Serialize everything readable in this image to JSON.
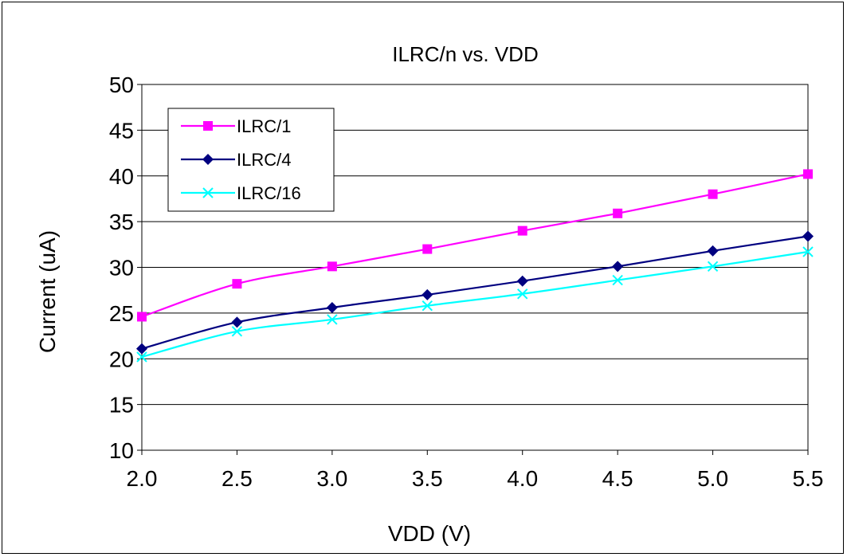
{
  "chart_data": {
    "type": "line",
    "title": "ILRC/n vs. VDD",
    "xlabel": "VDD (V)",
    "ylabel": "Current (uA)",
    "x": [
      2.0,
      2.5,
      3.0,
      3.5,
      4.0,
      4.5,
      5.0,
      5.5
    ],
    "x_tick_labels": [
      "2.0",
      "2.5",
      "3.0",
      "3.5",
      "4.0",
      "4.5",
      "5.0",
      "5.5"
    ],
    "y_tick_labels": [
      "10",
      "15",
      "20",
      "25",
      "30",
      "35",
      "40",
      "45",
      "50"
    ],
    "xlim": [
      2.0,
      5.5
    ],
    "ylim": [
      10,
      50
    ],
    "grid": "horizontal",
    "legend_position": "top-left",
    "series": [
      {
        "name": "ILRC/1",
        "color": "#FF00FF",
        "marker": "square",
        "values": [
          24.6,
          28.2,
          30.1,
          32.0,
          34.0,
          35.9,
          38.0,
          40.2
        ]
      },
      {
        "name": "ILRC/4",
        "color": "#000080",
        "marker": "diamond",
        "values": [
          21.1,
          24.0,
          25.6,
          27.0,
          28.5,
          30.1,
          31.8,
          33.4
        ]
      },
      {
        "name": "ILRC/16",
        "color": "#00FFFF",
        "marker": "x",
        "values": [
          20.2,
          23.0,
          24.3,
          25.8,
          27.1,
          28.6,
          30.1,
          31.7
        ]
      }
    ]
  }
}
